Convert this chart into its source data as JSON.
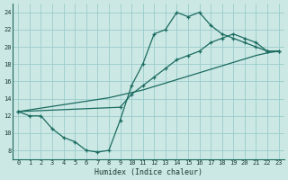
{
  "xlabel": "Humidex (Indice chaleur)",
  "bg_color": "#cce8e4",
  "grid_color": "#99cccc",
  "line_color": "#1a6b60",
  "xlim": [
    -0.5,
    23.5
  ],
  "ylim": [
    7,
    25
  ],
  "xticks": [
    0,
    1,
    2,
    3,
    4,
    5,
    6,
    7,
    8,
    9,
    10,
    11,
    12,
    13,
    14,
    15,
    16,
    17,
    18,
    19,
    20,
    21,
    22,
    23
  ],
  "yticks": [
    8,
    10,
    12,
    14,
    16,
    18,
    20,
    22,
    24
  ],
  "line1_x": [
    0,
    1,
    2,
    3,
    4,
    5,
    6,
    7,
    8,
    9,
    10,
    11,
    12,
    13,
    14,
    15,
    16,
    17,
    18,
    19,
    20,
    21,
    22,
    23
  ],
  "line1_y": [
    12.5,
    12.0,
    12.0,
    10.5,
    9.5,
    9.0,
    8.0,
    7.8,
    8.0,
    11.5,
    15.5,
    18.0,
    21.5,
    22.0,
    24.0,
    23.5,
    24.0,
    22.5,
    21.5,
    21.0,
    20.5,
    20.0,
    19.5,
    19.5
  ],
  "line2_x": [
    0,
    1,
    2,
    3,
    4,
    5,
    6,
    7,
    8,
    9,
    10,
    11,
    12,
    13,
    14,
    15,
    16,
    17,
    18,
    19,
    20,
    21,
    22,
    23
  ],
  "line2_y": [
    12.5,
    12.7,
    12.9,
    13.1,
    13.3,
    13.5,
    13.7,
    13.9,
    14.1,
    14.4,
    14.7,
    15.0,
    15.4,
    15.8,
    16.2,
    16.6,
    17.0,
    17.4,
    17.8,
    18.2,
    18.6,
    19.0,
    19.3,
    19.5
  ],
  "line3_x": [
    0,
    9,
    10,
    11,
    12,
    13,
    14,
    15,
    16,
    17,
    18,
    19,
    20,
    21,
    22,
    23
  ],
  "line3_y": [
    12.5,
    13.0,
    14.5,
    15.5,
    16.5,
    17.5,
    18.5,
    19.0,
    19.5,
    20.5,
    21.0,
    21.5,
    21.0,
    20.5,
    19.5,
    19.5
  ]
}
